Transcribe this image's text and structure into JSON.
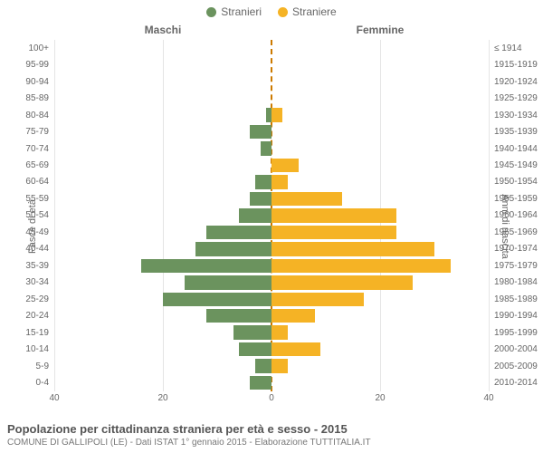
{
  "chart": {
    "type": "population-pyramid",
    "legend": {
      "male": {
        "label": "Stranieri",
        "color": "#6b935e"
      },
      "female": {
        "label": "Straniere",
        "color": "#f5b325"
      }
    },
    "gender_headers": {
      "male": "Maschi",
      "female": "Femmine"
    },
    "y_title_left": "Fasce di età",
    "y_title_right": "Anni di nascita",
    "x_max": 40,
    "x_ticks": [
      40,
      20,
      0,
      20,
      40
    ],
    "title": "Popolazione per cittadinanza straniera per età e sesso - 2015",
    "subtitle": "COMUNE DI GALLIPOLI (LE) - Dati ISTAT 1° gennaio 2015 - Elaborazione TUTTITALIA.IT",
    "background": "#ffffff",
    "grid_color": "#e5e5e5",
    "center_line_color": "#cc7a00",
    "label_color": "#666666",
    "label_fontsize": 10,
    "rows": [
      {
        "age": "100+",
        "birth": "≤ 1914",
        "m": 0,
        "f": 0
      },
      {
        "age": "95-99",
        "birth": "1915-1919",
        "m": 0,
        "f": 0
      },
      {
        "age": "90-94",
        "birth": "1920-1924",
        "m": 0,
        "f": 0
      },
      {
        "age": "85-89",
        "birth": "1925-1929",
        "m": 0,
        "f": 0
      },
      {
        "age": "80-84",
        "birth": "1930-1934",
        "m": 1,
        "f": 2
      },
      {
        "age": "75-79",
        "birth": "1935-1939",
        "m": 4,
        "f": 0
      },
      {
        "age": "70-74",
        "birth": "1940-1944",
        "m": 2,
        "f": 0
      },
      {
        "age": "65-69",
        "birth": "1945-1949",
        "m": 0,
        "f": 5
      },
      {
        "age": "60-64",
        "birth": "1950-1954",
        "m": 3,
        "f": 3
      },
      {
        "age": "55-59",
        "birth": "1955-1959",
        "m": 4,
        "f": 13
      },
      {
        "age": "50-54",
        "birth": "1960-1964",
        "m": 6,
        "f": 23
      },
      {
        "age": "45-49",
        "birth": "1965-1969",
        "m": 12,
        "f": 23
      },
      {
        "age": "40-44",
        "birth": "1970-1974",
        "m": 14,
        "f": 30
      },
      {
        "age": "35-39",
        "birth": "1975-1979",
        "m": 24,
        "f": 33
      },
      {
        "age": "30-34",
        "birth": "1980-1984",
        "m": 16,
        "f": 26
      },
      {
        "age": "25-29",
        "birth": "1985-1989",
        "m": 20,
        "f": 17
      },
      {
        "age": "20-24",
        "birth": "1990-1994",
        "m": 12,
        "f": 8
      },
      {
        "age": "15-19",
        "birth": "1995-1999",
        "m": 7,
        "f": 3
      },
      {
        "age": "10-14",
        "birth": "2000-2004",
        "m": 6,
        "f": 9
      },
      {
        "age": "5-9",
        "birth": "2005-2009",
        "m": 3,
        "f": 3
      },
      {
        "age": "0-4",
        "birth": "2010-2014",
        "m": 4,
        "f": 0
      }
    ]
  }
}
